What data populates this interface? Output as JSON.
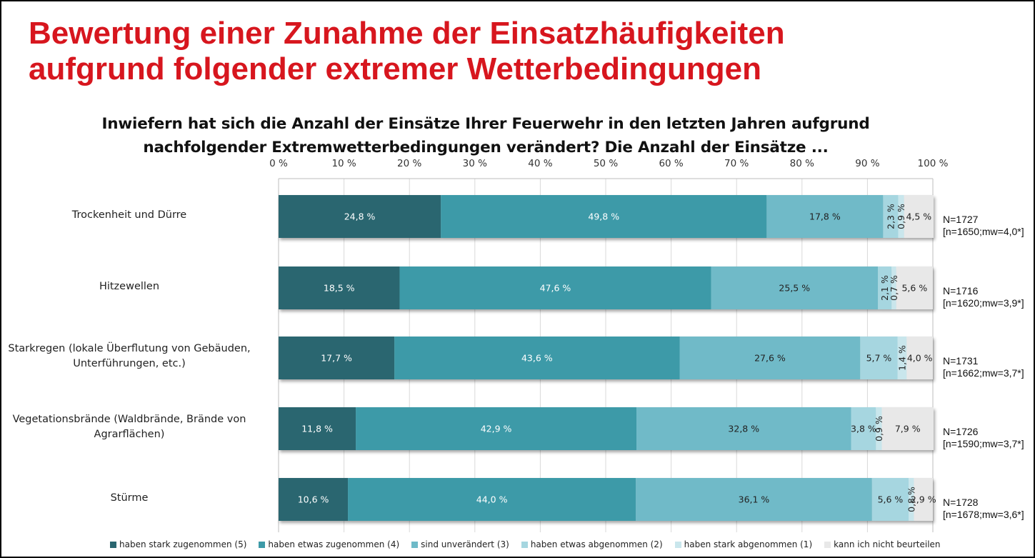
{
  "title": "Bewertung einer Zunahme der Einsatzhäufigkeiten aufgrund folgender extremer Wetterbedingungen",
  "title_lines": [
    "Bewertung einer Zunahme der Einsatzhäufigkeiten",
    "aufgrund folgender extremer Wetterbedingungen"
  ],
  "subtitle_lines": [
    "Inwiefern hat sich die Anzahl der Einsätze Ihrer Feuerwehr in den letzten Jahren aufgrund",
    "nachfolgender Extremwetterbedingungen verändert? Die Anzahl der Einsätze ..."
  ],
  "colors": {
    "title": "#d7161e",
    "series": [
      "#2a6670",
      "#3d9aa8",
      "#6fbac8",
      "#a6d6e0",
      "#c9e6ec",
      "#e8e8e8"
    ]
  },
  "chart_data": {
    "type": "bar",
    "orientation": "horizontal-stacked-100",
    "title": "Inwiefern hat sich die Anzahl der Einsätze Ihrer Feuerwehr in den letzten Jahren aufgrund nachfolgender Extremwetterbedingungen verändert? Die Anzahl der Einsätze ...",
    "xlabel": "",
    "ylabel": "",
    "xlim": [
      0,
      100
    ],
    "x_ticks": [
      "0 %",
      "10 %",
      "20 %",
      "30 %",
      "40 %",
      "50 %",
      "60 %",
      "70 %",
      "80 %",
      "90 %",
      "100 %"
    ],
    "x_axis_position": "top",
    "grid": true,
    "legend_position": "bottom",
    "categories": [
      [
        "Trockenheit und Dürre"
      ],
      [
        "Hitzewellen"
      ],
      [
        "Starkregen (lokale Überflutung von Gebäuden,",
        "Unterführungen, etc.)"
      ],
      [
        "Vegetationsbrände (Waldbrände, Brände von",
        "Agrarflächen)"
      ],
      [
        "Stürme"
      ]
    ],
    "series": [
      {
        "name": "haben stark zugenommen (5)",
        "values": [
          24.8,
          18.5,
          17.7,
          11.8,
          10.6
        ],
        "labels": [
          "24,8 %",
          "18,5 %",
          "17,7 %",
          "11,8 %",
          "10,6 %"
        ]
      },
      {
        "name": "haben etwas zugenommen (4)",
        "values": [
          49.8,
          47.6,
          43.6,
          42.9,
          44.0
        ],
        "labels": [
          "49,8 %",
          "47,6 %",
          "43,6 %",
          "42,9 %",
          "44,0 %"
        ]
      },
      {
        "name": "sind unverändert (3)",
        "values": [
          17.8,
          25.5,
          27.6,
          32.8,
          36.1
        ],
        "labels": [
          "17,8 %",
          "25,5 %",
          "27,6 %",
          "32,8 %",
          "36,1 %"
        ]
      },
      {
        "name": "haben etwas abgenommen (2)",
        "values": [
          2.3,
          2.1,
          5.7,
          3.8,
          5.6
        ],
        "labels": [
          "2,3 %",
          "2,1 %",
          "5,7 %",
          "3,8 %",
          "5,6 %"
        ]
      },
      {
        "name": "haben stark abgenommen (1)",
        "values": [
          0.9,
          0.7,
          1.4,
          0.9,
          0.8
        ],
        "labels": [
          "0,9 %",
          "0,7 %",
          "1,4 %",
          "0,9 %",
          "0,8 %"
        ]
      },
      {
        "name": "kann ich nicht beurteilen",
        "values": [
          4.5,
          5.6,
          4.0,
          7.9,
          2.9
        ],
        "labels": [
          "4,5 %",
          "5,6 %",
          "4,0 %",
          "7,9 %",
          "2,9 %"
        ]
      }
    ],
    "annotations": [
      [
        "N=1727",
        "[n=1650;mw=4,0*]"
      ],
      [
        "N=1716",
        "[n=1620;mw=3,9*]"
      ],
      [
        "N=1731",
        "[n=1662;mw=3,7*]"
      ],
      [
        "N=1726",
        "[n=1590;mw=3,7*]"
      ],
      [
        "N=1728",
        "[n=1678;mw=3,6*]"
      ]
    ]
  }
}
